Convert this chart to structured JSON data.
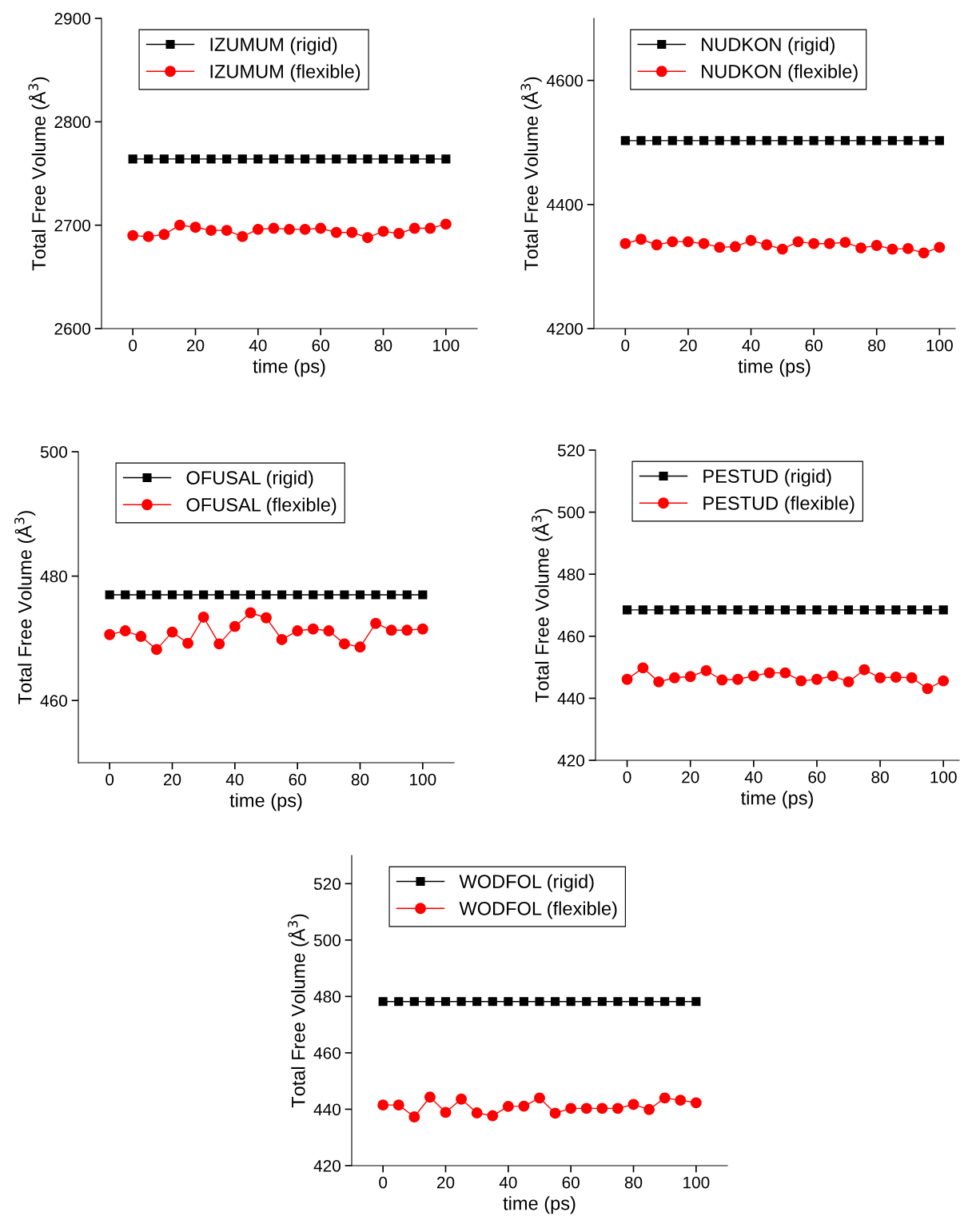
{
  "chart_data": [
    {
      "type": "line",
      "xlabel": "time (ps)",
      "ylabel": "Total Free Volume (Å$^{3}$)",
      "x": [
        0,
        5,
        10,
        15,
        20,
        25,
        30,
        35,
        40,
        45,
        50,
        55,
        60,
        65,
        70,
        75,
        80,
        85,
        90,
        95,
        100
      ],
      "xlim": [
        -10,
        110
      ],
      "xticks": [
        0,
        20,
        40,
        60,
        80,
        100
      ],
      "ylim": [
        2600,
        2900
      ],
      "yticks": [
        2600,
        2700,
        2800,
        2900
      ],
      "legend": "top left",
      "grid": false,
      "series": [
        {
          "name": "IZUMUM (rigid)",
          "color": "#000000",
          "marker": "square",
          "values": [
            2764,
            2764,
            2764,
            2764,
            2764,
            2764,
            2764,
            2764,
            2764,
            2764,
            2764,
            2764,
            2764,
            2764,
            2764,
            2764,
            2764,
            2764,
            2764,
            2764,
            2764
          ]
        },
        {
          "name": "IZUMUM (flexible)",
          "color": "#ff0000",
          "marker": "circle",
          "values": [
            2690,
            2689,
            2691,
            2700,
            2698,
            2695,
            2695,
            2689,
            2696,
            2697,
            2696,
            2696,
            2697,
            2693,
            2693,
            2688,
            2694,
            2692,
            2697,
            2697,
            2701
          ]
        }
      ]
    },
    {
      "type": "line",
      "xlabel": "time (ps)",
      "ylabel": "Total Free Volume (Å$^{3}$)",
      "x": [
        0,
        5,
        10,
        15,
        20,
        25,
        30,
        35,
        40,
        45,
        50,
        55,
        60,
        65,
        70,
        75,
        80,
        85,
        90,
        95,
        100
      ],
      "xlim": [
        -10,
        105
      ],
      "xticks": [
        0,
        20,
        40,
        60,
        80,
        100
      ],
      "ylim": [
        4200,
        4700
      ],
      "yticks": [
        4200,
        4400,
        4600
      ],
      "legend": "top left",
      "grid": false,
      "series": [
        {
          "name": "NUDKON (rigid)",
          "color": "#000000",
          "marker": "square",
          "values": [
            4503,
            4503,
            4503,
            4503,
            4503,
            4503,
            4503,
            4503,
            4503,
            4503,
            4503,
            4503,
            4503,
            4503,
            4503,
            4503,
            4503,
            4503,
            4503,
            4503,
            4503
          ]
        },
        {
          "name": "NUDKON (flexible)",
          "color": "#ff0000",
          "marker": "circle",
          "values": [
            4337,
            4344,
            4335,
            4340,
            4340,
            4337,
            4331,
            4332,
            4342,
            4335,
            4328,
            4340,
            4337,
            4337,
            4339,
            4330,
            4334,
            4328,
            4329,
            4322,
            4331
          ]
        }
      ]
    },
    {
      "type": "line",
      "xlabel": "time (ps)",
      "ylabel": "Total Free Volume (Å$^{3}$)",
      "x": [
        0,
        5,
        10,
        15,
        20,
        25,
        30,
        35,
        40,
        45,
        50,
        55,
        60,
        65,
        70,
        75,
        80,
        85,
        90,
        95,
        100
      ],
      "xlim": [
        -10,
        110
      ],
      "xticks": [
        0,
        20,
        40,
        60,
        80,
        100
      ],
      "ylim": [
        450,
        500
      ],
      "yticks": [
        460,
        480,
        500
      ],
      "legend": "top left",
      "grid": false,
      "series": [
        {
          "name": "OFUSAL (rigid)",
          "color": "#000000",
          "marker": "square",
          "values": [
            477.0,
            477.0,
            477.0,
            477.0,
            477.0,
            477.0,
            477.0,
            477.0,
            477.0,
            477.0,
            477.0,
            477.0,
            477.0,
            477.0,
            477.0,
            477.0,
            477.0,
            477.0,
            477.0,
            477.0,
            477.0
          ]
        },
        {
          "name": "OFUSAL (flexible)",
          "color": "#ff0000",
          "marker": "circle",
          "values": [
            470.6,
            471.2,
            470.3,
            468.2,
            471.0,
            469.2,
            473.4,
            469.1,
            471.9,
            474.1,
            473.3,
            469.8,
            471.2,
            471.5,
            471.2,
            469.1,
            468.6,
            472.4,
            471.3,
            471.3,
            471.5
          ]
        }
      ]
    },
    {
      "type": "line",
      "xlabel": "time (ps)",
      "ylabel": "Total Free Volume (Å$^{3}$)",
      "x": [
        0,
        5,
        10,
        15,
        20,
        25,
        30,
        35,
        40,
        45,
        50,
        55,
        60,
        65,
        70,
        75,
        80,
        85,
        90,
        95,
        100
      ],
      "xlim": [
        -10,
        105
      ],
      "xticks": [
        0,
        20,
        40,
        60,
        80,
        100
      ],
      "ylim": [
        420,
        520
      ],
      "yticks": [
        420,
        440,
        460,
        480,
        500,
        520
      ],
      "legend": "top left",
      "grid": false,
      "series": [
        {
          "name": "PESTUD (rigid)",
          "color": "#000000",
          "marker": "square",
          "values": [
            468.5,
            468.5,
            468.5,
            468.5,
            468.5,
            468.5,
            468.5,
            468.5,
            468.5,
            468.5,
            468.5,
            468.5,
            468.5,
            468.5,
            468.5,
            468.5,
            468.5,
            468.5,
            468.5,
            468.5,
            468.5
          ]
        },
        {
          "name": "PESTUD (flexible)",
          "color": "#ff0000",
          "marker": "circle",
          "values": [
            446.1,
            449.8,
            445.3,
            446.6,
            447.0,
            448.9,
            445.9,
            446.1,
            447.2,
            448.2,
            448.2,
            445.6,
            446.1,
            447.2,
            445.3,
            449.2,
            446.6,
            446.8,
            446.6,
            443.1,
            445.6
          ]
        }
      ]
    },
    {
      "type": "line",
      "xlabel": "time (ps)",
      "ylabel": "Total Free Volume (Å$^{3}$)",
      "x": [
        0,
        5,
        10,
        15,
        20,
        25,
        30,
        35,
        40,
        45,
        50,
        55,
        60,
        65,
        70,
        75,
        80,
        85,
        90,
        95,
        100
      ],
      "xlim": [
        -10,
        110
      ],
      "xticks": [
        0,
        20,
        40,
        60,
        80,
        100
      ],
      "ylim": [
        420,
        530
      ],
      "yticks": [
        420,
        440,
        460,
        480,
        500,
        520
      ],
      "legend": "top left",
      "grid": false,
      "series": [
        {
          "name": "WODFOL (rigid)",
          "color": "#000000",
          "marker": "square",
          "values": [
            478.2,
            478.2,
            478.2,
            478.2,
            478.2,
            478.2,
            478.2,
            478.2,
            478.2,
            478.2,
            478.2,
            478.2,
            478.2,
            478.2,
            478.2,
            478.2,
            478.2,
            478.2,
            478.2,
            478.2,
            478.2
          ]
        },
        {
          "name": "WODFOL (flexible)",
          "color": "#ff0000",
          "marker": "circle",
          "values": [
            441.5,
            441.5,
            437.3,
            444.3,
            438.9,
            443.6,
            438.7,
            437.7,
            441.0,
            441.1,
            444.0,
            438.6,
            440.3,
            440.3,
            440.3,
            440.3,
            441.7,
            439.9,
            444.0,
            443.2,
            442.3
          ]
        }
      ]
    }
  ]
}
